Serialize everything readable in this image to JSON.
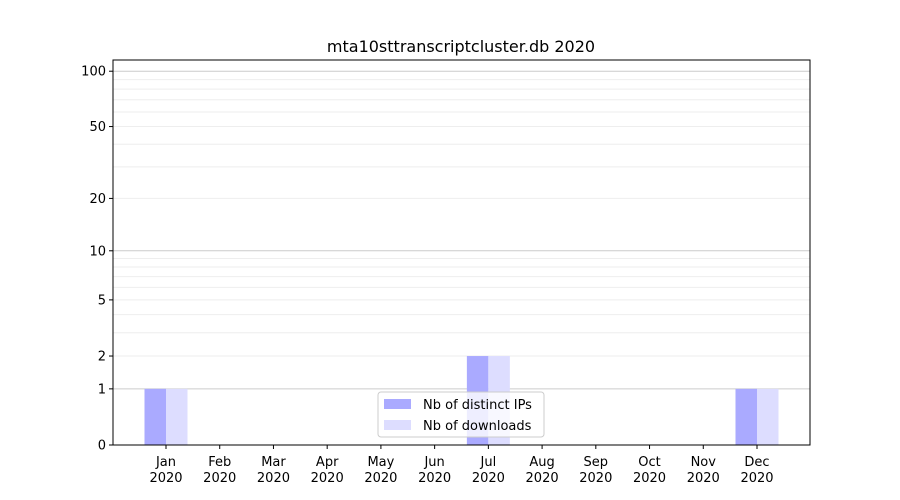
{
  "chart_data": {
    "type": "bar",
    "title": "mta10sttranscriptcluster.db 2020",
    "xlabel": "",
    "ylabel": "",
    "yscale": "log(1+y)",
    "ylim": [
      0,
      115
    ],
    "yticks": [
      0,
      1,
      2,
      5,
      10,
      20,
      50,
      100
    ],
    "grid": "horizontal",
    "legend_placement": "bottom-center",
    "categories": [
      "Jan\n2020",
      "Feb\n2020",
      "Mar\n2020",
      "Apr\n2020",
      "May\n2020",
      "Jun\n2020",
      "Jul\n2020",
      "Aug\n2020",
      "Sep\n2020",
      "Oct\n2020",
      "Nov\n2020",
      "Dec\n2020"
    ],
    "series": [
      {
        "name": "Nb of distinct IPs",
        "color": "#aaaaff",
        "values": [
          1,
          0,
          0,
          0,
          0,
          0,
          2,
          0,
          0,
          0,
          0,
          1
        ]
      },
      {
        "name": "Nb of downloads",
        "color": "#ddddff",
        "values": [
          1,
          0,
          0,
          0,
          0,
          0,
          2,
          0,
          0,
          0,
          0,
          1
        ]
      }
    ]
  }
}
